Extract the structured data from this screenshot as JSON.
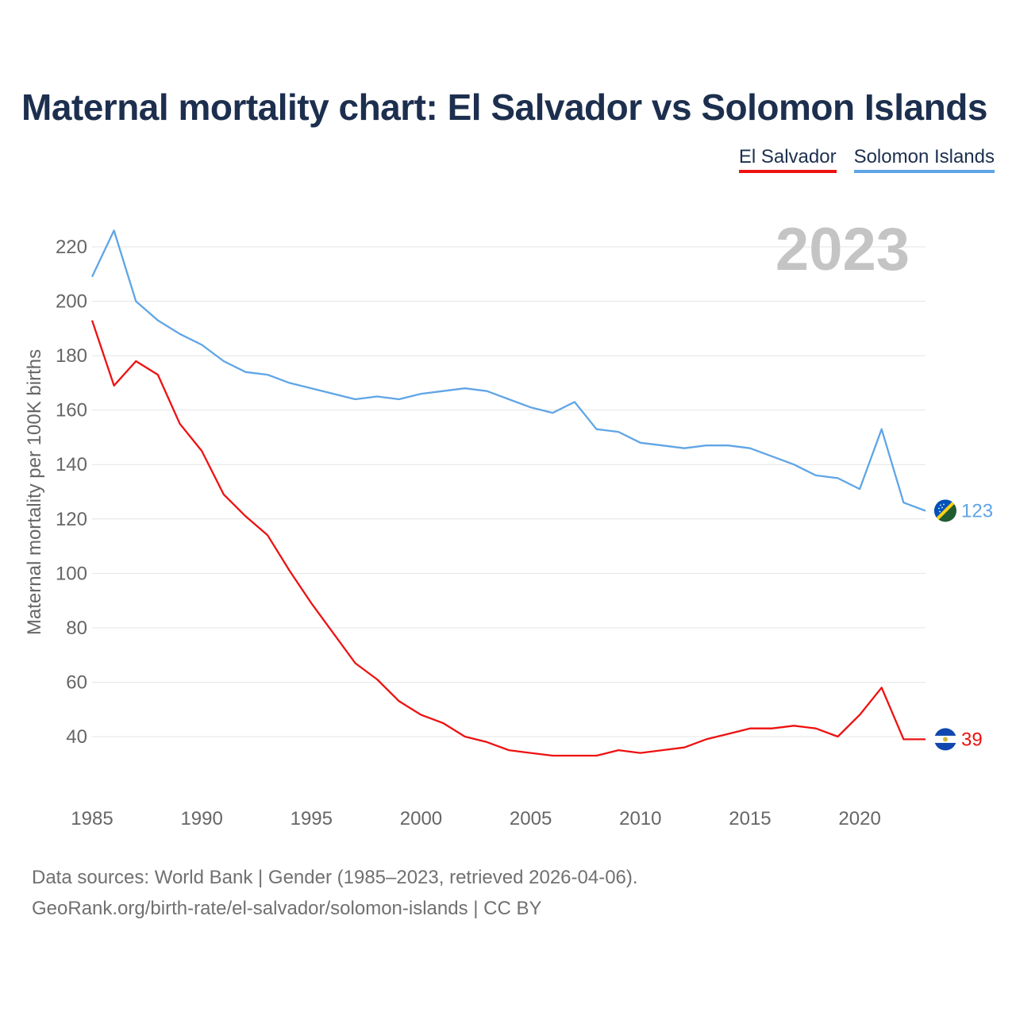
{
  "title": "Maternal mortality chart: El Salvador vs Solomon Islands",
  "legend": [
    {
      "label": "El Salvador",
      "color": "#ee1111"
    },
    {
      "label": "Solomon Islands",
      "color": "#5fa5e6"
    }
  ],
  "chart_data": {
    "type": "line",
    "title": "Maternal mortality chart: El Salvador vs Solomon Islands",
    "xlabel": "",
    "ylabel": "Maternal mortality per 100K births",
    "year_label": "2023",
    "xlim": [
      1985,
      2023
    ],
    "ylim": [
      20,
      228
    ],
    "x_ticks": [
      1985,
      1990,
      1995,
      2000,
      2005,
      2010,
      2015,
      2020
    ],
    "y_ticks": [
      40,
      60,
      80,
      100,
      120,
      140,
      160,
      180,
      200,
      220
    ],
    "grid": true,
    "x": [
      1985,
      1986,
      1987,
      1988,
      1989,
      1990,
      1991,
      1992,
      1993,
      1994,
      1995,
      1996,
      1997,
      1998,
      1999,
      2000,
      2001,
      2002,
      2003,
      2004,
      2005,
      2006,
      2007,
      2008,
      2009,
      2010,
      2011,
      2012,
      2013,
      2014,
      2015,
      2016,
      2017,
      2018,
      2019,
      2020,
      2021,
      2022,
      2023
    ],
    "series": [
      {
        "name": "El Salvador",
        "color": "#ee1111",
        "end_label": "39",
        "values": [
          193,
          169,
          178,
          173,
          155,
          145,
          129,
          121,
          114,
          101,
          89,
          78,
          67,
          61,
          53,
          48,
          45,
          40,
          38,
          35,
          34,
          33,
          33,
          33,
          35,
          34,
          35,
          36,
          39,
          41,
          43,
          43,
          44,
          43,
          40,
          48,
          58,
          39,
          39
        ]
      },
      {
        "name": "Solomon Islands",
        "color": "#5fa5e6",
        "end_label": "123",
        "values": [
          209,
          226,
          200,
          193,
          188,
          184,
          178,
          174,
          173,
          170,
          168,
          166,
          164,
          165,
          164,
          166,
          167,
          168,
          167,
          164,
          161,
          159,
          163,
          153,
          152,
          148,
          147,
          146,
          147,
          147,
          146,
          143,
          140,
          136,
          135,
          131,
          153,
          126,
          123
        ]
      }
    ]
  },
  "source": {
    "line1": "Data sources: World Bank | Gender (1985–2023, retrieved 2026-04-06).",
    "line2": "GeoRank.org/birth-rate/el-salvador/solomon-islands | CC BY"
  }
}
